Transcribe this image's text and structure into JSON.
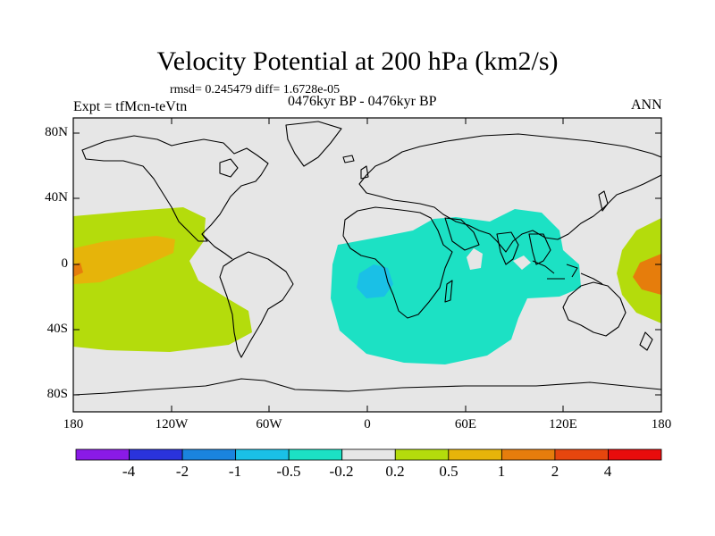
{
  "title": "Velocity Potential at 200 hPa (km2/s)",
  "stats": "rmsd= 0.245479 diff= 1.6728e-05",
  "expt": "Expt = tfMcn-teVtn",
  "period": "0476kyr BP - 0476kyr BP",
  "season": "ANN",
  "yticks": [
    "80N",
    "40N",
    "0",
    "40S",
    "80S"
  ],
  "xticks": [
    "180",
    "120W",
    "60W",
    "0",
    "60E",
    "120E",
    "180"
  ],
  "colorbar": {
    "labels": [
      "-4",
      "-2",
      "-1",
      "-0.5",
      "-0.2",
      "0.2",
      "0.5",
      "1",
      "2",
      "4"
    ],
    "colors": [
      "#8a1ae6",
      "#2a33dc",
      "#1a84de",
      "#1ac0e6",
      "#1ce1c4",
      "#e6e6e6",
      "#b4dc0c",
      "#e6b40a",
      "#e67d0c",
      "#e6460e",
      "#e80c0c"
    ]
  },
  "colors": {
    "background": "#e6e6e6",
    "neg_weak": "#1ce1c4",
    "neg_mid": "#1ac0e6",
    "pos_weak": "#b4dc0c",
    "pos_mid": "#e6b40a",
    "pos_strong": "#e67d0c"
  }
}
